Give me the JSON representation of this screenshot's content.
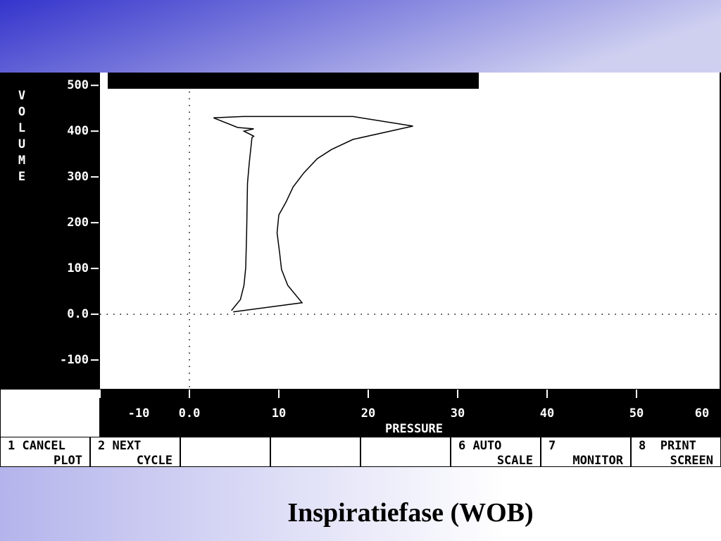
{
  "chart_data": {
    "type": "line",
    "x_label": "PRESSURE",
    "y_label": "VOLUME",
    "x": [
      4.7,
      5.7,
      6.1,
      6.3,
      6.4,
      6.5,
      6.7,
      7.0,
      7.2,
      6.1,
      7.2,
      5.4,
      2.7,
      6.0,
      18.3,
      25.0,
      18.3,
      15.9,
      14.3,
      12.8,
      11.6,
      10.8,
      10.0,
      9.8,
      10.1,
      10.3,
      11.0,
      12.6,
      4.9
    ],
    "values": [
      8,
      32,
      63,
      102,
      178,
      286,
      332,
      386,
      389,
      400,
      405,
      408,
      429,
      432,
      432,
      411,
      382,
      360,
      340,
      309,
      278,
      245,
      217,
      178,
      132,
      98,
      63,
      25,
      5
    ],
    "color": "#000000",
    "xlim": [
      -10,
      60
    ],
    "ylim": [
      -163,
      528
    ],
    "xticks": [
      -10,
      {
        "value": 0,
        "label": "0.0"
      },
      10,
      20,
      30,
      40,
      50,
      60
    ],
    "yticks": [
      -100,
      {
        "value": 0,
        "label": "0.0"
      },
      100,
      200,
      300,
      400,
      500
    ]
  },
  "buttons": [
    [
      "1 CANCEL",
      "PLOT"
    ],
    [
      "2 NEXT",
      "CYCLE"
    ],
    null,
    null,
    null,
    [
      "6 AUTO",
      "SCALE"
    ],
    [
      "7",
      "MONITOR"
    ],
    [
      "8  PRINT",
      "SCREEN"
    ]
  ],
  "caption": "Inspiratiefase (WOB)"
}
